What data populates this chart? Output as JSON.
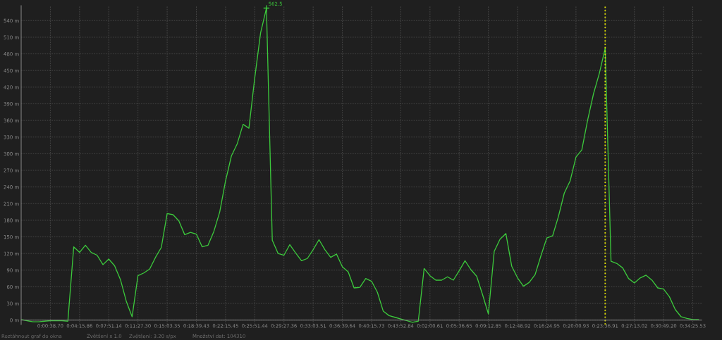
{
  "chart_data": {
    "type": "line",
    "color": "#3cc83c",
    "categories": [
      null,
      null,
      null,
      null,
      null,
      "0:00:38.70",
      null,
      null,
      null,
      null,
      "0:04:15.86",
      null,
      null,
      null,
      null,
      "0:07:51.14",
      null,
      null,
      null,
      null,
      "0:11:27.30",
      null,
      null,
      null,
      null,
      "0:15:03.35",
      null,
      null,
      null,
      null,
      "0:18:39.43",
      null,
      null,
      null,
      null,
      "0:22:15.45",
      null,
      null,
      null,
      null,
      "0:25:51.44",
      null,
      null,
      null,
      null,
      "0:29:27.36",
      null,
      null,
      null,
      null,
      "0:33:03.51",
      null,
      null,
      null,
      null,
      "0:36:39.64",
      null,
      null,
      null,
      null,
      "0:40:15.73",
      null,
      null,
      null,
      null,
      "0:43:52.84",
      null,
      null,
      null,
      null,
      "0:02:00.61",
      null,
      null,
      null,
      null,
      "0:05:36.65",
      null,
      null,
      null,
      null,
      "0:09:12.85",
      null,
      null,
      null,
      null,
      "0:12:48.92",
      null,
      null,
      null,
      null,
      "0:16:24.95",
      null,
      null,
      null,
      null,
      "0:20:00.93",
      null,
      null,
      null,
      null,
      "0:23:36.91",
      null,
      null,
      null,
      null,
      "0:27:13.02",
      null,
      null,
      null,
      null,
      "0:30:49.20",
      null,
      null,
      null,
      null,
      "0:34:25.53",
      null
    ],
    "values": [
      1,
      -1,
      -3,
      -3,
      -2,
      -1,
      -1,
      -1,
      -2,
      132,
      122,
      135,
      122,
      117,
      100,
      110,
      98,
      73,
      34,
      6,
      80,
      85,
      92,
      113,
      131,
      192,
      190,
      179,
      154,
      158,
      155,
      132,
      135,
      160,
      195,
      251,
      296,
      318,
      353,
      346,
      437,
      518,
      562.5,
      144,
      120,
      117,
      136,
      121,
      107,
      111,
      127,
      145,
      127,
      113,
      119,
      96,
      87,
      58,
      59,
      75,
      70,
      50,
      16,
      8,
      5,
      2,
      -1,
      -4,
      -2,
      93,
      80,
      72,
      72,
      78,
      72,
      89,
      107,
      91,
      79,
      46,
      11,
      124,
      146,
      156,
      97,
      76,
      61,
      68,
      82,
      116,
      148,
      152,
      187,
      229,
      251,
      294,
      307,
      361,
      408,
      445,
      490,
      106,
      102,
      94,
      75,
      67,
      76,
      81,
      72,
      58,
      56,
      42,
      19,
      6,
      3,
      1,
      1
    ],
    "value_labels": [
      null,
      null,
      null,
      null,
      null,
      null,
      null,
      null,
      null,
      null,
      null,
      null,
      null,
      null,
      null,
      null,
      null,
      null,
      null,
      null,
      null,
      null,
      null,
      null,
      null,
      null,
      null,
      null,
      null,
      null,
      null,
      null,
      null,
      null,
      null,
      null,
      null,
      null,
      null,
      null,
      null,
      null,
      "562.5",
      null,
      null,
      null,
      null,
      null,
      null,
      null,
      null,
      null,
      null,
      null,
      null,
      null,
      null,
      null,
      null,
      null,
      null,
      null,
      null,
      null,
      null,
      null,
      null,
      null,
      null,
      null,
      null,
      null,
      null,
      null,
      null,
      null,
      null,
      null,
      null,
      null,
      null,
      null,
      null,
      null,
      null,
      null,
      null,
      null,
      null,
      null,
      null,
      null,
      null,
      null,
      null,
      null,
      null,
      null,
      null,
      null,
      null,
      null,
      null,
      null,
      null,
      null,
      null,
      null,
      null,
      null,
      null,
      null,
      null,
      null,
      null,
      null,
      null
    ],
    "ylim": [
      -8,
      567
    ],
    "yticks": [
      {
        "value": 0,
        "label": "0 m"
      },
      {
        "value": 30,
        "label": "30 m"
      },
      {
        "value": 60,
        "label": "60 m"
      },
      {
        "value": 90,
        "label": "90 m"
      },
      {
        "value": 120,
        "label": "120 m"
      },
      {
        "value": 150,
        "label": "150 m"
      },
      {
        "value": 180,
        "label": "180 m"
      },
      {
        "value": 210,
        "label": "210 m"
      },
      {
        "value": 240,
        "label": "240 m"
      },
      {
        "value": 270,
        "label": "270 m"
      },
      {
        "value": 300,
        "label": "300 m"
      },
      {
        "value": 330,
        "label": "330 m"
      },
      {
        "value": 360,
        "label": "360 m"
      },
      {
        "value": 390,
        "label": "390 m"
      },
      {
        "value": 420,
        "label": "420 m"
      },
      {
        "value": 450,
        "label": "450 m"
      },
      {
        "value": 480,
        "label": "480 m"
      },
      {
        "value": 510,
        "label": "510 m"
      },
      {
        "value": 540,
        "label": "540 m"
      }
    ],
    "grid": true,
    "ref_lines": [
      {
        "axis": "x",
        "value": "0:23:36.91",
        "color": "#e6e600",
        "line_style": "dotted"
      }
    ],
    "annotations": [
      "Roztáhnout graf do okna",
      "Zvětšení x 1.0",
      "Zvětšení: 3.20 s/px",
      "Množství dat: 104310"
    ]
  }
}
